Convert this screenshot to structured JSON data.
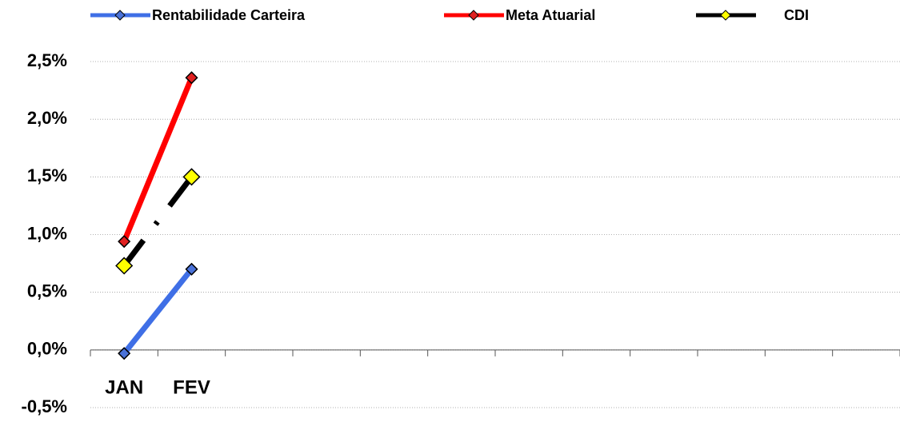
{
  "chart_data": {
    "type": "line",
    "categories": [
      "JAN",
      "FEV",
      null,
      null,
      null,
      null,
      null,
      null,
      null,
      null,
      null,
      null
    ],
    "series": [
      {
        "name": "Rentabilidade Carteira",
        "color": "#3f6fe6",
        "marker_color": "#4a72d8",
        "values": [
          -0.03,
          0.7,
          null,
          null,
          null,
          null,
          null,
          null,
          null,
          null,
          null,
          null
        ]
      },
      {
        "name": "Meta Atuarial",
        "color": "#ff0000",
        "marker_color": "#e02020",
        "values": [
          0.94,
          2.36,
          null,
          null,
          null,
          null,
          null,
          null,
          null,
          null,
          null,
          null
        ]
      },
      {
        "name": "CDI",
        "color": "#000000",
        "marker_color": "#ffff00",
        "dashed": true,
        "values": [
          0.73,
          1.5,
          null,
          null,
          null,
          null,
          null,
          null,
          null,
          null,
          null,
          null
        ]
      }
    ],
    "ylim": [
      -0.5,
      2.5
    ],
    "yticks": [
      {
        "value": -0.5,
        "label": "-0,5%"
      },
      {
        "value": 0,
        "label": "0,0%"
      },
      {
        "value": 0.5,
        "label": "0,5%"
      },
      {
        "value": 1,
        "label": "1,0%"
      },
      {
        "value": 1.5,
        "label": "1,5%"
      },
      {
        "value": 2,
        "label": "2,0%"
      },
      {
        "value": 2.5,
        "label": "2,5%"
      }
    ],
    "grid": true,
    "legend": "top"
  }
}
